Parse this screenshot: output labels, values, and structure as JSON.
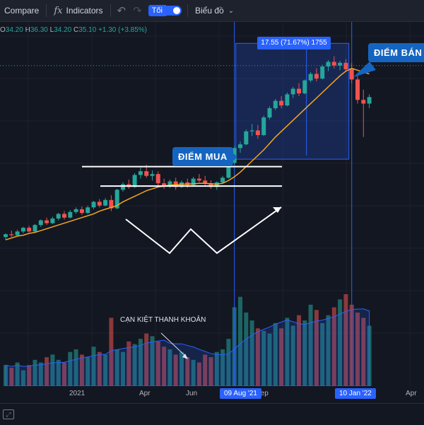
{
  "toolbar": {
    "compare_label": "Compare",
    "indicators_label": "Indicators",
    "theme_toggle_label": "Tối",
    "chart_type_label": "Biểu đồ"
  },
  "legend": {
    "open": "34.20",
    "high": "36.30",
    "low": "34.20",
    "close": "35.10",
    "change": "+1.30 (+3.85%)"
  },
  "annotations": {
    "buy_label": "ĐIỂM MUA",
    "sell_label": "ĐIỂM BÁN",
    "range_label": "17.55 (71.67%) 1755",
    "volume_note": "CẠN KIỆT THANH KHOẢN"
  },
  "x_axis": {
    "labels": [
      "2021",
      "Apr",
      "Jun",
      "Sep",
      "Apr"
    ],
    "buy_date": "09 Aug '21",
    "sell_date": "10 Jan '22"
  },
  "colors": {
    "background": "#131722",
    "up": "#26a69a",
    "down": "#ef5350",
    "ma_line": "#f5a623",
    "accent": "#2962ff",
    "callout": "#1565c0"
  },
  "chart_data": {
    "type": "candlestick",
    "ohlc": [
      [
        15.4,
        15.8,
        15.1,
        15.7
      ],
      [
        15.7,
        16.1,
        15.4,
        15.6
      ],
      [
        15.6,
        16.2,
        15.5,
        16.0
      ],
      [
        16.0,
        16.5,
        15.8,
        16.4
      ],
      [
        16.4,
        16.6,
        15.9,
        16.0
      ],
      [
        16.0,
        16.8,
        15.9,
        16.7
      ],
      [
        16.7,
        17.3,
        16.5,
        17.2
      ],
      [
        17.2,
        17.5,
        16.7,
        16.9
      ],
      [
        16.9,
        17.6,
        16.8,
        17.4
      ],
      [
        17.4,
        18.0,
        17.2,
        17.9
      ],
      [
        17.9,
        18.2,
        17.3,
        17.5
      ],
      [
        17.5,
        18.3,
        17.4,
        18.1
      ],
      [
        18.1,
        18.6,
        17.9,
        18.4
      ],
      [
        18.4,
        18.7,
        17.8,
        18.0
      ],
      [
        18.0,
        18.8,
        17.9,
        18.6
      ],
      [
        18.6,
        19.3,
        18.4,
        19.2
      ],
      [
        19.2,
        19.5,
        18.6,
        18.8
      ],
      [
        18.8,
        19.6,
        18.7,
        19.4
      ],
      [
        19.4,
        19.9,
        18.2,
        18.5
      ],
      [
        18.5,
        20.6,
        18.4,
        20.5
      ],
      [
        20.5,
        21.3,
        20.3,
        21.1
      ],
      [
        21.1,
        21.6,
        20.6,
        20.8
      ],
      [
        20.8,
        22.3,
        20.7,
        22.1
      ],
      [
        22.1,
        22.9,
        21.7,
        22.5
      ],
      [
        22.5,
        23.2,
        21.8,
        22.0
      ],
      [
        22.0,
        22.6,
        21.5,
        22.2
      ],
      [
        22.2,
        22.5,
        20.9,
        21.2
      ],
      [
        21.2,
        21.7,
        20.6,
        20.9
      ],
      [
        20.9,
        21.6,
        20.7,
        21.4
      ],
      [
        21.4,
        21.8,
        20.5,
        20.8
      ],
      [
        20.8,
        21.5,
        20.7,
        21.3
      ],
      [
        21.3,
        21.7,
        20.7,
        21.0
      ],
      [
        21.0,
        21.9,
        20.9,
        21.7
      ],
      [
        21.7,
        22.2,
        21.3,
        21.5
      ],
      [
        21.5,
        22.0,
        20.9,
        21.2
      ],
      [
        21.2,
        21.5,
        20.6,
        20.8
      ],
      [
        20.8,
        21.4,
        20.5,
        21.3
      ],
      [
        21.3,
        22.0,
        21.2,
        21.8
      ],
      [
        21.8,
        23.5,
        21.7,
        23.4
      ],
      [
        23.4,
        25.2,
        23.2,
        25.0
      ],
      [
        25.0,
        25.7,
        24.5,
        25.4
      ],
      [
        25.4,
        27.0,
        25.3,
        26.8
      ],
      [
        26.8,
        27.6,
        26.3,
        26.9
      ],
      [
        26.9,
        27.5,
        26.0,
        26.4
      ],
      [
        26.4,
        28.5,
        26.3,
        28.3
      ],
      [
        28.3,
        29.5,
        28.1,
        29.3
      ],
      [
        29.3,
        30.3,
        29.1,
        30.1
      ],
      [
        30.1,
        30.6,
        29.3,
        29.6
      ],
      [
        29.6,
        31.0,
        29.5,
        30.8
      ],
      [
        30.8,
        31.6,
        30.4,
        31.4
      ],
      [
        31.4,
        32.0,
        30.6,
        30.9
      ],
      [
        30.9,
        32.4,
        30.8,
        32.3
      ],
      [
        32.3,
        33.2,
        32.1,
        33.0
      ],
      [
        33.0,
        33.6,
        32.2,
        32.5
      ],
      [
        32.5,
        34.0,
        32.4,
        33.8
      ],
      [
        33.8,
        34.5,
        33.3,
        34.3
      ],
      [
        34.3,
        34.9,
        33.6,
        33.9
      ],
      [
        33.9,
        34.4,
        33.4,
        34.2
      ],
      [
        34.2,
        34.6,
        33.2,
        33.5
      ],
      [
        33.5,
        34.2,
        32.0,
        32.4
      ],
      [
        32.4,
        32.8,
        29.8,
        30.2
      ],
      [
        30.2,
        31.3,
        26.2,
        29.8
      ],
      [
        29.8,
        30.8,
        29.3,
        30.5
      ]
    ],
    "volume": [
      8,
      7,
      9,
      6,
      8,
      10,
      9,
      11,
      12,
      10,
      9,
      13,
      14,
      12,
      11,
      15,
      13,
      12,
      26,
      14,
      13,
      17,
      16,
      18,
      20,
      19,
      17,
      15,
      14,
      12,
      13,
      11,
      10,
      9,
      12,
      11,
      13,
      14,
      18,
      30,
      34,
      28,
      25,
      22,
      21,
      20,
      24,
      22,
      26,
      23,
      27,
      25,
      31,
      29,
      24,
      27,
      30,
      33,
      35,
      31,
      28,
      26,
      23
    ],
    "ma": [
      15.1,
      15.3,
      15.5,
      15.6,
      15.8,
      15.9,
      16.1,
      16.3,
      16.5,
      16.7,
      16.9,
      17.1,
      17.3,
      17.5,
      17.7,
      17.9,
      18.2,
      18.4,
      18.6,
      18.8,
      19.2,
      19.5,
      19.8,
      20.1,
      20.4,
      20.6,
      20.8,
      20.9,
      21.0,
      21.05,
      21.1,
      21.1,
      21.15,
      21.2,
      21.2,
      21.15,
      21.1,
      21.2,
      21.5,
      21.9,
      22.4,
      23.0,
      23.6,
      24.2,
      24.8,
      25.5,
      26.2,
      26.8,
      27.4,
      28.0,
      28.6,
      29.2,
      29.8,
      30.4,
      31.0,
      31.6,
      32.2,
      32.8,
      33.3,
      33.6,
      33.4,
      33.2,
      33.0
    ],
    "ylim": [
      10,
      38
    ],
    "support_level": 20.9,
    "resistance_level": 23.0,
    "buy_index": 39,
    "sell_index": 59
  }
}
